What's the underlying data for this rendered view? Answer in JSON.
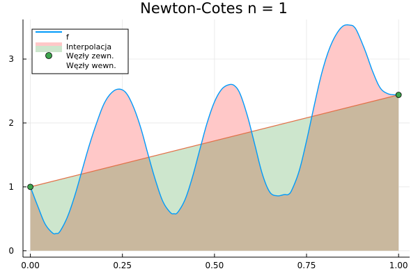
{
  "chart_data": {
    "type": "area",
    "title": "Newton-Cotes n = 1",
    "xlabel": "",
    "ylabel": "",
    "xlim": [
      -0.02,
      1.03
    ],
    "ylim": [
      -0.1,
      3.62
    ],
    "xticks": [
      {
        "value": 0.0,
        "label": "0.00"
      },
      {
        "value": 0.25,
        "label": "0.25"
      },
      {
        "value": 0.5,
        "label": "0.50"
      },
      {
        "value": 0.75,
        "label": "0.75"
      },
      {
        "value": 1.0,
        "label": "1.00"
      }
    ],
    "yticks": [
      {
        "value": 0,
        "label": "0"
      },
      {
        "value": 1,
        "label": "1"
      },
      {
        "value": 2,
        "label": "2"
      },
      {
        "value": 3,
        "label": "3"
      }
    ],
    "grid": true,
    "legend_position": "top-left",
    "colors": {
      "f": "#009AFA",
      "interpolation": "#E26F46",
      "above": "#ffc8c8",
      "below": "#cde6cd",
      "area_under": "#c9b89e",
      "nodes": "#3DA44D"
    },
    "series": [
      {
        "name": "f",
        "x": [
          0,
          0.02,
          0.04,
          0.06,
          0.07,
          0.08,
          0.1,
          0.12,
          0.14,
          0.16,
          0.18,
          0.2,
          0.22,
          0.24,
          0.26,
          0.28,
          0.3,
          0.32,
          0.34,
          0.36,
          0.38,
          0.39,
          0.4,
          0.42,
          0.44,
          0.46,
          0.48,
          0.5,
          0.52,
          0.54,
          0.555,
          0.57,
          0.59,
          0.61,
          0.63,
          0.65,
          0.67,
          0.69,
          0.7,
          0.71,
          0.73,
          0.75,
          0.77,
          0.79,
          0.81,
          0.83,
          0.85,
          0.87,
          0.88,
          0.89,
          0.91,
          0.93,
          0.95,
          0.97,
          0.99,
          1.0
        ],
        "y": [
          1.0,
          0.7,
          0.42,
          0.28,
          0.27,
          0.3,
          0.52,
          0.85,
          1.25,
          1.65,
          2.0,
          2.3,
          2.47,
          2.53,
          2.47,
          2.25,
          1.92,
          1.5,
          1.1,
          0.77,
          0.6,
          0.58,
          0.6,
          0.8,
          1.15,
          1.58,
          2.0,
          2.33,
          2.53,
          2.6,
          2.58,
          2.45,
          2.1,
          1.65,
          1.2,
          0.92,
          0.86,
          0.88,
          0.88,
          0.95,
          1.25,
          1.72,
          2.25,
          2.75,
          3.13,
          3.38,
          3.52,
          3.53,
          3.5,
          3.4,
          3.12,
          2.8,
          2.55,
          2.46,
          2.44,
          2.44
        ]
      },
      {
        "name": "Interpolacja",
        "x": [
          0,
          1
        ],
        "y": [
          1.0,
          2.44
        ]
      }
    ],
    "nodes": {
      "external": {
        "name": "Węzły zewn.",
        "x": [
          0,
          1
        ],
        "y": [
          1.0,
          2.44
        ]
      },
      "internal": {
        "name": "Węzły wewn.",
        "x": [],
        "y": []
      }
    }
  }
}
